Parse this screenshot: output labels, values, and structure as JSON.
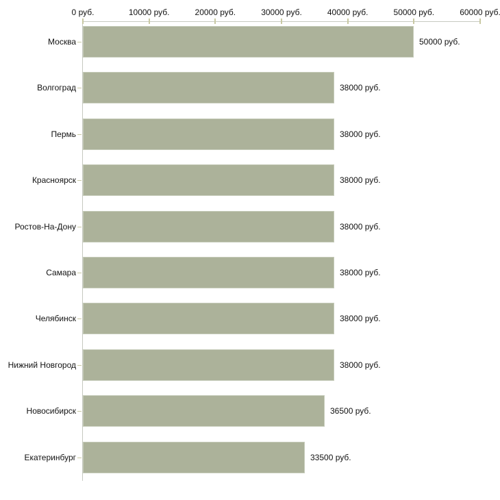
{
  "chart_data": {
    "type": "bar",
    "orientation": "horizontal",
    "title": "",
    "xlabel": "",
    "ylabel": "",
    "grid": false,
    "legend": false,
    "axis_position": "top",
    "categories": [
      "Москва",
      "Волгоград",
      "Пермь",
      "Красноярск",
      "Ростов-На-Дону",
      "Самара",
      "Челябинск",
      "Нижний Новгород",
      "Новосибирск",
      "Екатеринбург"
    ],
    "values": [
      50000,
      38000,
      38000,
      38000,
      38000,
      38000,
      38000,
      38000,
      36500,
      33500
    ],
    "value_labels": [
      "50000 руб.",
      "38000 руб.",
      "38000 руб.",
      "38000 руб.",
      "38000 руб.",
      "38000 руб.",
      "38000 руб.",
      "38000 руб.",
      "36500 руб.",
      "33500 руб."
    ],
    "x_ticks": [
      0,
      10000,
      20000,
      30000,
      40000,
      50000,
      60000
    ],
    "x_tick_labels": [
      "0 руб.",
      "10000 руб.",
      "20000 руб.",
      "30000 руб.",
      "40000 руб.",
      "50000 руб.",
      "60000 руб."
    ],
    "xlim": [
      0,
      60000
    ]
  },
  "colors": {
    "background": "#ffffff",
    "bar_fill": "#acb29a",
    "bar_border": "#c6ccba",
    "axis_line": "#c6c9c0",
    "tick_mark": "#c9c9a3",
    "text": "#111111"
  }
}
